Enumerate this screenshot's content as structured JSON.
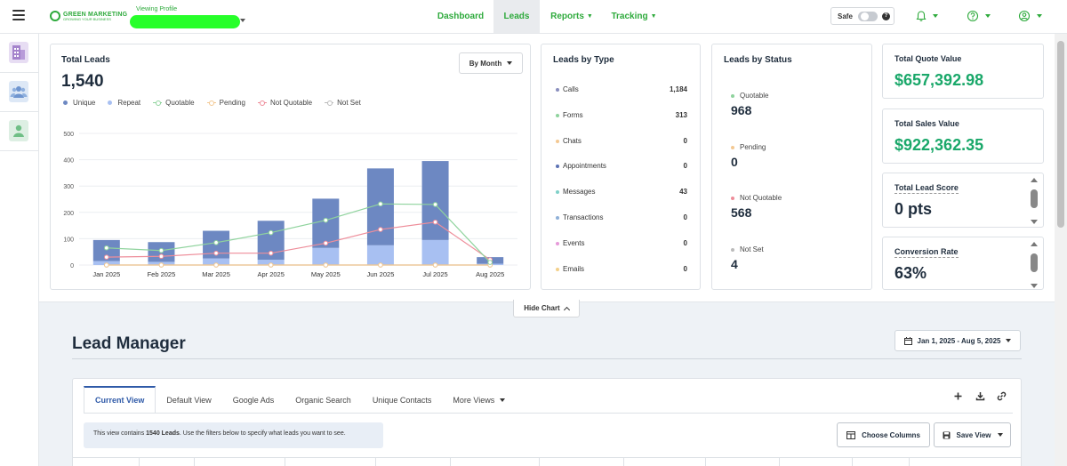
{
  "header": {
    "logo_text": "GREEN MARKETING",
    "logo_tagline": "GROWING YOUR BUSINESS",
    "viewing_label": "Viewing Profile",
    "nav": [
      {
        "label": "Dashboard"
      },
      {
        "label": "Leads"
      },
      {
        "label": "Reports"
      },
      {
        "label": "Tracking"
      }
    ],
    "safe_label": "Safe",
    "icons": [
      "menu-icon",
      "bell-icon",
      "question-icon",
      "user-icon"
    ],
    "accent": "#2eaa3c"
  },
  "sidebar": {
    "icons": [
      "building-icon",
      "group-icon",
      "person-icon"
    ]
  },
  "total_leads": {
    "title": "Total Leads",
    "value": "1,540",
    "period_button": "By Month",
    "legend": [
      "Unique",
      "Repeat",
      "Quotable",
      "Pending",
      "Not Quotable",
      "Not Set"
    ]
  },
  "chart_data": {
    "type": "bar",
    "categories": [
      "Jan 2025",
      "Feb 2025",
      "Mar 2025",
      "Apr 2025",
      "May 2025",
      "Jun 2025",
      "Jul 2025",
      "Aug 2025"
    ],
    "ylim": [
      0,
      500
    ],
    "yticks": [
      0,
      100,
      200,
      300,
      400,
      500
    ],
    "stacked": true,
    "series": [
      {
        "name": "Repeat",
        "kind": "bar",
        "color": "#a8c0f2",
        "values": [
          15,
          12,
          25,
          20,
          65,
          75,
          95,
          5
        ]
      },
      {
        "name": "Unique",
        "kind": "bar",
        "color": "#6d88c2",
        "values": [
          80,
          75,
          105,
          148,
          187,
          292,
          300,
          25
        ]
      },
      {
        "name": "Quotable",
        "kind": "line",
        "color": "#8fd39d",
        "values": [
          65,
          55,
          85,
          123,
          170,
          232,
          230,
          10
        ]
      },
      {
        "name": "Pending",
        "kind": "line",
        "color": "#f3c892",
        "values": [
          0,
          0,
          0,
          0,
          0,
          0,
          0,
          0
        ]
      },
      {
        "name": "Not Quotable",
        "kind": "line",
        "color": "#ee8d9a",
        "values": [
          30,
          33,
          45,
          45,
          83,
          135,
          163,
          20
        ]
      },
      {
        "name": "Not Set",
        "kind": "line",
        "color": "#bbbbbb",
        "values": [
          0,
          0,
          0,
          0,
          0,
          0,
          0,
          0
        ]
      }
    ]
  },
  "leads_by_type": {
    "title": "Leads by Type",
    "rows": [
      {
        "label": "Calls",
        "value": "1,184",
        "color": "#8a8fbe"
      },
      {
        "label": "Forms",
        "value": "313",
        "color": "#8fd39d"
      },
      {
        "label": "Chats",
        "value": "0",
        "color": "#f3c892"
      },
      {
        "label": "Appointments",
        "value": "0",
        "color": "#5c72b4"
      },
      {
        "label": "Messages",
        "value": "43",
        "color": "#7fd0c8"
      },
      {
        "label": "Transactions",
        "value": "0",
        "color": "#8fb0d8"
      },
      {
        "label": "Events",
        "value": "0",
        "color": "#e69ad9"
      },
      {
        "label": "Emails",
        "value": "0",
        "color": "#f3d08a"
      }
    ]
  },
  "leads_by_status": {
    "title": "Leads by Status",
    "rows": [
      {
        "label": "Quotable",
        "value": "968",
        "color": "#8fd39d"
      },
      {
        "label": "Pending",
        "value": "0",
        "color": "#f3c892"
      },
      {
        "label": "Not Quotable",
        "value": "568",
        "color": "#ee8d9a"
      },
      {
        "label": "Not Set",
        "value": "4",
        "color": "#bbbbbb"
      }
    ]
  },
  "kpis": [
    {
      "title": "Total Quote Value",
      "value": "$657,392.98",
      "color": "#1aa86a"
    },
    {
      "title": "Total Sales Value",
      "value": "$922,362.35",
      "color": "#1aa86a"
    },
    {
      "title": "Total Lead Score",
      "value": "0 pts",
      "color": "#1f2d3d"
    },
    {
      "title": "Conversion Rate",
      "value": "63%",
      "color": "#1f2d3d"
    }
  ],
  "hide_chart_label": "Hide Chart",
  "lead_manager": {
    "title": "Lead Manager",
    "date_range": "Jan 1, 2025 - Aug 5, 2025",
    "tabs": [
      {
        "label": "Current View"
      },
      {
        "label": "Default View"
      },
      {
        "label": "Google Ads"
      },
      {
        "label": "Organic Search"
      },
      {
        "label": "Unique Contacts"
      },
      {
        "label": "More Views"
      }
    ],
    "info_prefix": "This view contains ",
    "info_count": "1540 Leads",
    "info_suffix": ". Use the filters below to specify what leads you want to see.",
    "choose_columns": "Choose Columns",
    "save_view": "Save View"
  }
}
